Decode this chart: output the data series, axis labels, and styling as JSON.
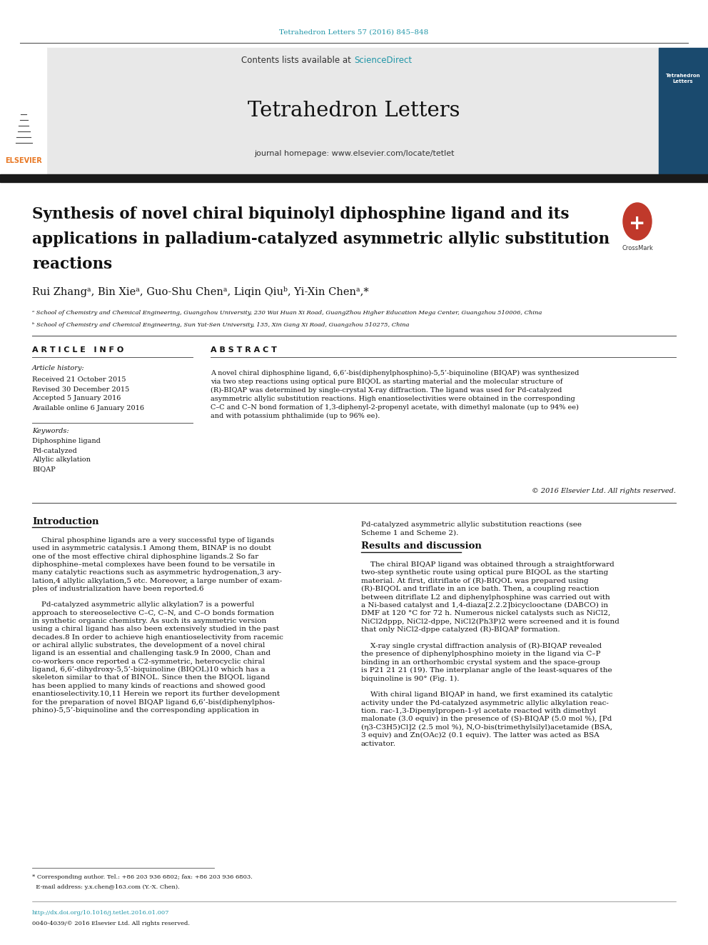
{
  "bg_color": "#ffffff",
  "top_citation": "Tetrahedron Letters 57 (2016) 845–848",
  "top_citation_color": "#2196a8",
  "journal_header_bg": "#e8e8e8",
  "contents_text": "Contents lists available at ",
  "sciencedirect_text": "ScienceDirect",
  "sciencedirect_color": "#2196a8",
  "journal_name": "Tetrahedron Letters",
  "journal_homepage": "journal homepage: www.elsevier.com/locate/tetlet",
  "black_bar_color": "#1a1a1a",
  "article_title_line1": "Synthesis of novel chiral biquinolyl diphosphine ligand and its",
  "article_title_line2": "applications in palladium-catalyzed asymmetric allylic substitution",
  "article_title_line3": "reactions",
  "author_line": "Rui Zhangᵃ, Bin Xieᵃ, Guo-Shu Chenᵃ, Liqin Qiuᵇ, Yi-Xin Chenᵃ,*",
  "affil_a": "ᵃ School of Chemistry and Chemical Engineering, Guangzhou University, 230 Wai Huan Xi Road, GuangZhou Higher Education Mega Center, Guangzhou 510006, China",
  "affil_b": "ᵇ School of Chemistry and Chemical Engineering, Sun Yat-Sen University, 135, Xin Gang Xi Road, Guangzhou 510275, China",
  "article_info_title": "A R T I C L E   I N F O",
  "article_history_label": "Article history:",
  "received": "Received 21 October 2015",
  "revised": "Revised 30 December 2015",
  "accepted": "Accepted 5 January 2016",
  "available": "Available online 6 January 2016",
  "keywords_label": "Keywords:",
  "keyword1": "Diphosphine ligand",
  "keyword2": "Pd-catalyzed",
  "keyword3": "Allylic alkylation",
  "keyword4": "BIQAP",
  "abstract_title": "A B S T R A C T",
  "abstract_text": "A novel chiral diphosphine ligand, 6,6’-bis(diphenylphosphino)-5,5’-biquinoline (BIQAP) was synthesized\nvia two step reactions using optical pure BIQOL as starting material and the molecular structure of\n(R)-BIQAP was determined by single-crystal X-ray diffraction. The ligand was used for Pd-catalyzed\nasymmetric allylic substitution reactions. High enantioselectivities were obtained in the corresponding\nC–C and C–N bond formation of 1,3-diphenyl-2-propenyl acetate, with dimethyl malonate (up to 94% ee)\nand with potassium phthalimide (up to 96% ee).",
  "copyright": "© 2016 Elsevier Ltd. All rights reserved.",
  "intro_title": "Introduction",
  "intro_col1": "    Chiral phosphine ligands are a very successful type of ligands\nused in asymmetric catalysis.1 Among them, BINAP is no doubt\none of the most effective chiral diphosphine ligands.2 So far\ndiphosphine–metal complexes have been found to be versatile in\nmany catalytic reactions such as asymmetric hydrogenation,3 ary-\nlation,4 allylic alkylation,5 etc. Moreover, a large number of exam-\nples of industrialization have been reported.6\n\n    Pd-catalyzed asymmetric allylic alkylation7 is a powerful\napproach to stereoselective C–C, C–N, and C–O bonds formation\nin synthetic organic chemistry. As such its asymmetric version\nusing a chiral ligand has also been extensively studied in the past\ndecades.8 In order to achieve high enantioselectivity from racemic\nor achiral allylic substrates, the development of a novel chiral\nligand is an essential and challenging task.9 In 2000, Chan and\nco-workers once reported a C2-symmetric, heterocyclic chiral\nligand, 6,6’-dihydroxy-5,5’-biquinoline (BIQOL)10 which has a\nskeleton similar to that of BINOL. Since then the BIQOL ligand\nhas been applied to many kinds of reactions and showed good\nenantioselectivity.10,11 Herein we report its further development\nfor the preparation of novel BIQAP ligand 6,6’-bis(diphenylphos-\nphino)-5,5’-biquinoline and the corresponding application in",
  "right_col_intro": "Pd-catalyzed asymmetric allylic substitution reactions (see\nScheme 1 and Scheme 2).",
  "results_title": "Results and discussion",
  "results_text": "    The chiral BIQAP ligand was obtained through a straightforward\ntwo-step synthetic route using optical pure BIQOL as the starting\nmaterial. At first, ditriflate of (R)-BIQOL was prepared using\n(R)-BIQOL and triflate in an ice bath. Then, a coupling reaction\nbetween ditriflate L2 and diphenylphosphine was carried out with\na Ni-based catalyst and 1,4-diaza[2.2.2]bicyclooctane (DABCO) in\nDMF at 120 °C for 72 h. Numerous nickel catalysts such as NiCl2,\nNiCl2dppp, NiCl2-dppe, NiCl2(Ph3P)2 were screened and it is found\nthat only NiCl2-dppe catalyzed (R)-BIQAP formation.\n\n    X-ray single crystal diffraction analysis of (R)-BIQAP revealed\nthe presence of diphenylphosphino moiety in the ligand via C–P\nbinding in an orthorhombic crystal system and the space-group\nis P21 21 21 (19). The interplanar angle of the least-squares of the\nbiquinoline is 90° (Fig. 1).\n\n    With chiral ligand BIQAP in hand, we first examined its catalytic\nactivity under the Pd-catalyzed asymmetric allylic alkylation reac-\ntion. rac-1,3-Dipenylpropen-1-yl acetate reacted with dimethyl\nmalonate (3.0 equiv) in the presence of (S)-BIQAP (5.0 mol %), [Pd\n(η3-C3H5)Cl]2 (2.5 mol %), N,O-bis(trimethylsilyl)acetamide (BSA,\n3 equiv) and Zn(OAc)2 (0.1 equiv). The latter was acted as BSA\nactivator.",
  "footnote1": "* Corresponding author. Tel.: +86 203 936 6802; fax: +86 203 936 6803.",
  "footnote2": "  E-mail address: y.x.chen@163.com (Y.-X. Chen).",
  "doi_text": "http://dx.doi.org/10.1016/j.tetlet.2016.01.007",
  "issn_text": "0040-4039/© 2016 Elsevier Ltd. All rights reserved.",
  "elsevier_color": "#e87722",
  "scheme_color": "#2196a8"
}
